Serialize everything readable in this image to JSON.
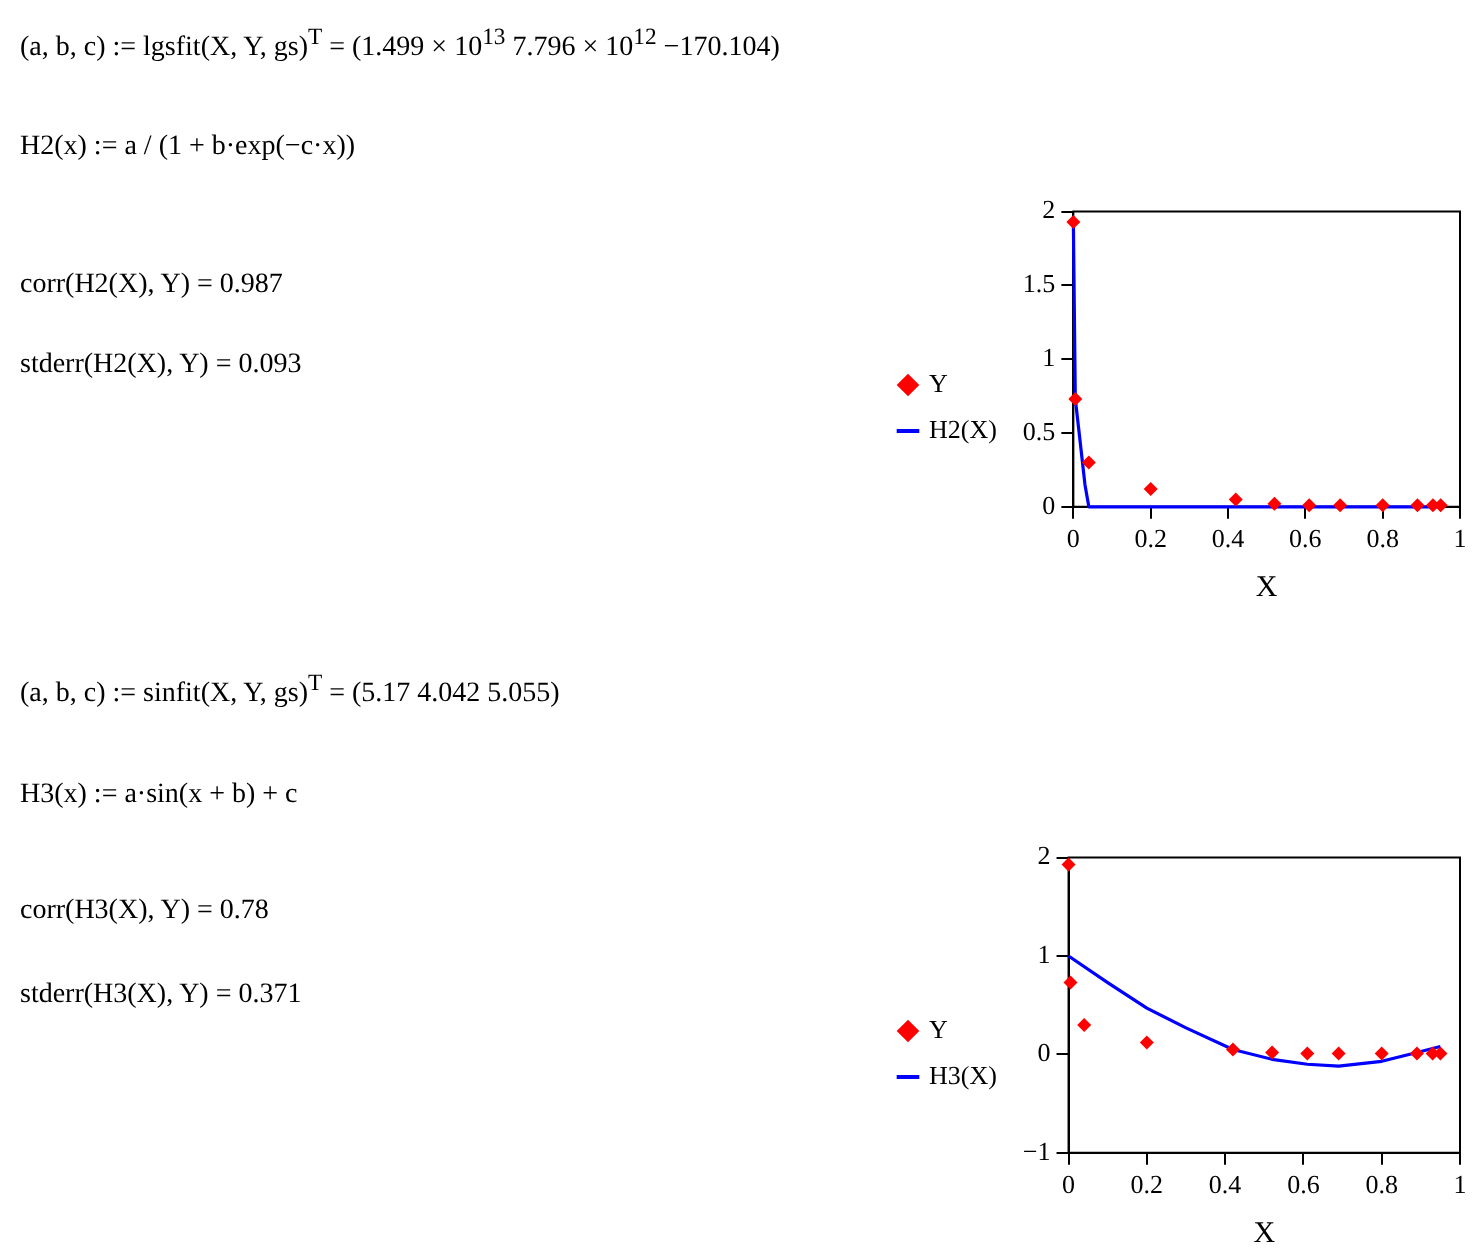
{
  "chart_data": [
    {
      "type": "scatter",
      "xlabel": "X",
      "xlim": [
        0,
        1
      ],
      "xticks": [
        0,
        0.2,
        0.4,
        0.6,
        0.8,
        1
      ],
      "ylim": [
        0,
        2
      ],
      "yticks": [
        0,
        0.5,
        1,
        1.5,
        2
      ],
      "grid": false,
      "legend": "left",
      "annotations": [
        "(a, b, c) := lgsfit(X, Y, gs)$^{T}$ = (1.499 × 10$^{13}$  7.796 × 10$^{12}$  −170.104)",
        "H2(x) := a / (1 + b·exp(−c·x))",
        "corr(H2(X), Y) = 0.987",
        "stderr(H2(X), Y) = 0.093"
      ],
      "series": [
        {
          "name": "Y",
          "type": "scatter",
          "color": "#ff0000",
          "marker": "diamond",
          "x": [
            0,
            0.005,
            0.04,
            0.2,
            0.42,
            0.52,
            0.61,
            0.69,
            0.8,
            0.89,
            0.93,
            0.95
          ],
          "values": [
            1.93,
            0.73,
            0.3,
            0.12,
            0.05,
            0.02,
            0.01,
            0.01,
            0.01,
            0.01,
            0.01,
            0.01
          ]
        },
        {
          "name": "H2(X)",
          "type": "line",
          "color": "#0000ff",
          "marker": "none",
          "x": [
            0,
            0.005,
            0.015,
            0.03,
            0.04,
            0.2,
            0.42,
            0.95
          ],
          "values": [
            1.93,
            0.73,
            0.5,
            0.15,
            0,
            0,
            0,
            0
          ]
        }
      ]
    },
    {
      "type": "scatter",
      "xlabel": "X",
      "xlim": [
        0,
        1
      ],
      "xticks": [
        0,
        0.2,
        0.4,
        0.6,
        0.8,
        1
      ],
      "ylim": [
        -1,
        2
      ],
      "yticks": [
        {
          "value": -1,
          "label": "−1"
        },
        0,
        1,
        2
      ],
      "grid": false,
      "legend": "left",
      "annotations": [
        "(a, b, c) := sinfit(X, Y, gs)$^{T}$ = (5.17  4.042  5.055)",
        "H3(x) := a·sin(x + b) + c",
        "corr(H3(X), Y) = 0.78",
        "stderr(H3(X), Y) = 0.371"
      ],
      "series": [
        {
          "name": "Y",
          "type": "scatter",
          "color": "#ff0000",
          "marker": "diamond",
          "x": [
            0,
            0.005,
            0.04,
            0.2,
            0.42,
            0.52,
            0.61,
            0.69,
            0.8,
            0.89,
            0.93,
            0.95
          ],
          "values": [
            1.93,
            0.73,
            0.3,
            0.12,
            0.05,
            0.02,
            0.01,
            0.01,
            0.01,
            0.01,
            0.01,
            0.01
          ]
        },
        {
          "name": "H3(X)",
          "type": "line",
          "color": "#0000ff",
          "marker": "none",
          "x": [
            0,
            0.1,
            0.2,
            0.3,
            0.42,
            0.52,
            0.61,
            0.69,
            0.8,
            0.89,
            0.95
          ],
          "values": [
            1,
            0.73,
            0.47,
            0.27,
            0.05,
            -0.05,
            -0.1,
            -0.12,
            -0.07,
            0.02,
            0.08
          ]
        }
      ]
    }
  ]
}
